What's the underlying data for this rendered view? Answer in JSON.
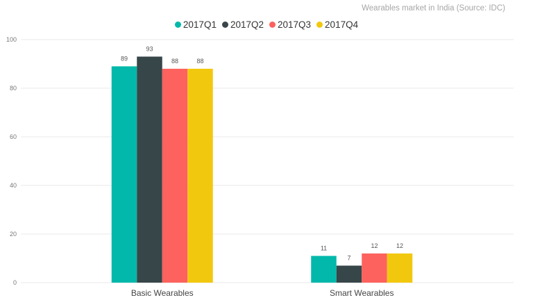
{
  "chart_data": {
    "type": "bar",
    "title": "Wearables market in India (Source: IDC)",
    "categories": [
      "Basic Wearables",
      "Smart Wearables"
    ],
    "series": [
      {
        "name": "2017Q1",
        "color": "#01B8AA",
        "values": [
          89,
          11
        ]
      },
      {
        "name": "2017Q2",
        "color": "#374649",
        "values": [
          93,
          7
        ]
      },
      {
        "name": "2017Q3",
        "color": "#FD625E",
        "values": [
          88,
          12
        ]
      },
      {
        "name": "2017Q4",
        "color": "#F2C80F",
        "values": [
          88,
          12
        ]
      }
    ],
    "ylim": [
      0,
      100
    ],
    "yticks": [
      0,
      20,
      40,
      60,
      80,
      100
    ],
    "grid": true,
    "legend_position": "top-center",
    "data_labels": true
  }
}
